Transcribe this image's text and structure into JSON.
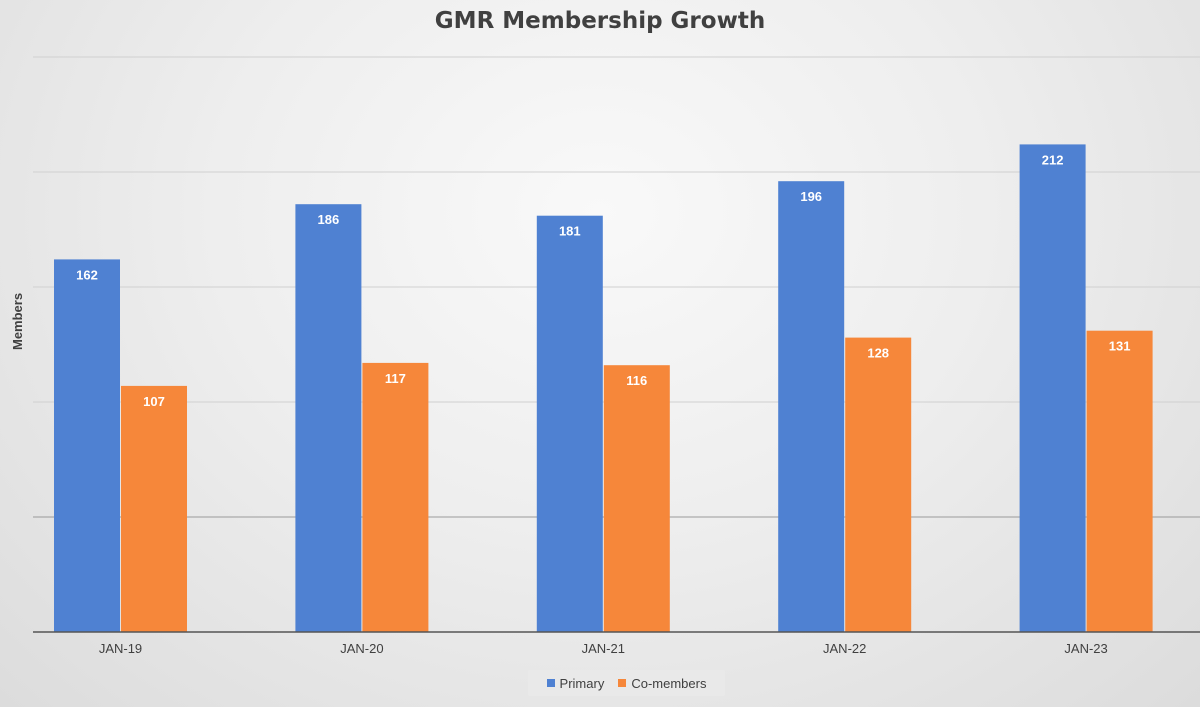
{
  "chart_data": {
    "type": "bar",
    "title": "GMR Membership Growth",
    "xlabel": "",
    "ylabel": "Members",
    "categories": [
      "JAN-19",
      "JAN-20",
      "JAN-21",
      "JAN-22",
      "JAN-23"
    ],
    "series": [
      {
        "name": "Primary",
        "values": [
          162,
          186,
          181,
          196,
          212
        ],
        "color": "#4F81D2"
      },
      {
        "name": "Co-members",
        "values": [
          107,
          117,
          116,
          128,
          131
        ],
        "color": "#F6873A"
      }
    ],
    "ylim": [
      0,
      250
    ],
    "grid": true,
    "legend": "bottom",
    "data_labels": true
  }
}
